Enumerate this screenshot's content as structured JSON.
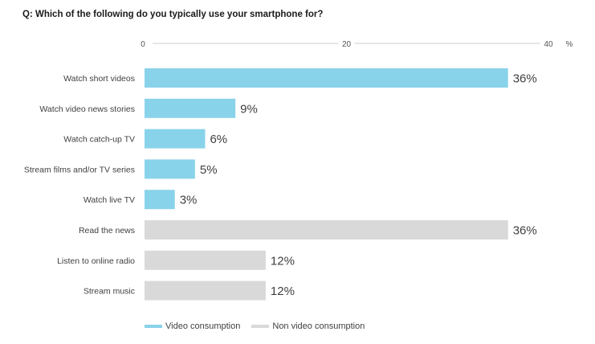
{
  "question": "Q: Which of the following do you typically use your smartphone for?",
  "colors": {
    "video": "#89d3ea",
    "non_video": "#d9d9d9"
  },
  "chart_data": {
    "type": "bar",
    "orientation": "horizontal",
    "title": "Q: Which of the following do you typically use your smartphone for?",
    "xlim": [
      0,
      40
    ],
    "xticks": [
      "0",
      "20",
      "40"
    ],
    "unit": "%",
    "categories": [
      "Watch short videos",
      "Watch video news stories",
      "Watch catch-up TV",
      "Stream films and/or TV series",
      "Watch live TV",
      "Read the news",
      "Listen to online radio",
      "Stream music"
    ],
    "values": [
      36,
      9,
      6,
      5,
      3,
      36,
      12,
      12
    ],
    "value_labels": [
      "36%",
      "9%",
      "6%",
      "5%",
      "3%",
      "36%",
      "12%",
      "12%"
    ],
    "groups": [
      "video",
      "video",
      "video",
      "video",
      "video",
      "non_video",
      "non_video",
      "non_video"
    ],
    "legend": [
      {
        "key": "video",
        "label": "Video consumption"
      },
      {
        "key": "non_video",
        "label": "Non video consumption"
      }
    ],
    "legend_position": "bottom-left",
    "grid": false
  }
}
